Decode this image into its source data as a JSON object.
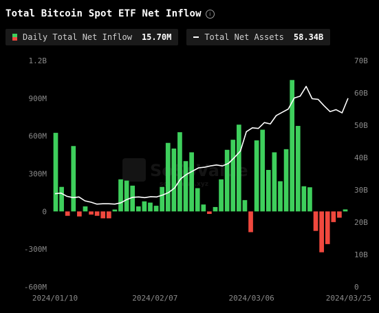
{
  "title": "Total Bitcoin Spot ETF Net Inflow",
  "legend": {
    "inflow": {
      "label": "Daily Total Net Inflow",
      "value": "15.70M",
      "pos_color": "#3ecf5c",
      "neg_color": "#f0483e"
    },
    "assets": {
      "label": "Total Net Assets",
      "value": "58.34B",
      "color": "#ffffff"
    }
  },
  "watermark": {
    "text": "SoSoValue",
    "sub": "sosovalue.xyz"
  },
  "chart_data": {
    "type": "bar",
    "x_tick_labels": [
      "2024/01/10",
      "2024/02/07",
      "2024/03/06",
      "2024/03/25"
    ],
    "y_left": {
      "ylim": [
        -600,
        1200
      ],
      "unit": "M",
      "tick_labels": [
        "1.2B",
        "900M",
        "600M",
        "300M",
        "0",
        "-300M",
        "-600M"
      ]
    },
    "y_right": {
      "ylim": [
        0,
        70
      ],
      "unit": "B",
      "tick_labels": [
        "70B",
        "60B",
        "50B",
        "40B",
        "30B",
        "20B",
        "10B",
        "0"
      ]
    },
    "grid": false,
    "series": [
      {
        "name": "Daily Total Net Inflow",
        "type": "bar",
        "axis": "left",
        "values": [
          625,
          195,
          -35,
          520,
          -40,
          40,
          -25,
          -35,
          -55,
          -55,
          15,
          255,
          245,
          205,
          40,
          80,
          70,
          45,
          195,
          545,
          500,
          630,
          400,
          470,
          185,
          55,
          -20,
          35,
          255,
          490,
          570,
          690,
          90,
          -165,
          565,
          650,
          330,
          470,
          240,
          495,
          1045,
          680,
          200,
          192,
          -155,
          -325,
          -260,
          -85,
          -50,
          16
        ]
      },
      {
        "name": "Total Net Assets",
        "type": "line",
        "axis": "right",
        "values": [
          28.8,
          29.0,
          28.0,
          27.6,
          27.8,
          26.6,
          26.2,
          25.6,
          25.7,
          25.7,
          25.6,
          26.0,
          27.0,
          27.7,
          27.8,
          27.6,
          27.9,
          27.8,
          28.4,
          29.2,
          30.6,
          33.4,
          34.8,
          35.8,
          36.8,
          37.0,
          37.4,
          37.7,
          37.4,
          38.2,
          40.0,
          42.0,
          48.0,
          49.2,
          49.0,
          50.8,
          50.4,
          53.0,
          54.0,
          55.0,
          58.4,
          59.0,
          62.0,
          58.2,
          58.0,
          56.0,
          54.2,
          54.8,
          53.8,
          58.34
        ]
      }
    ]
  }
}
